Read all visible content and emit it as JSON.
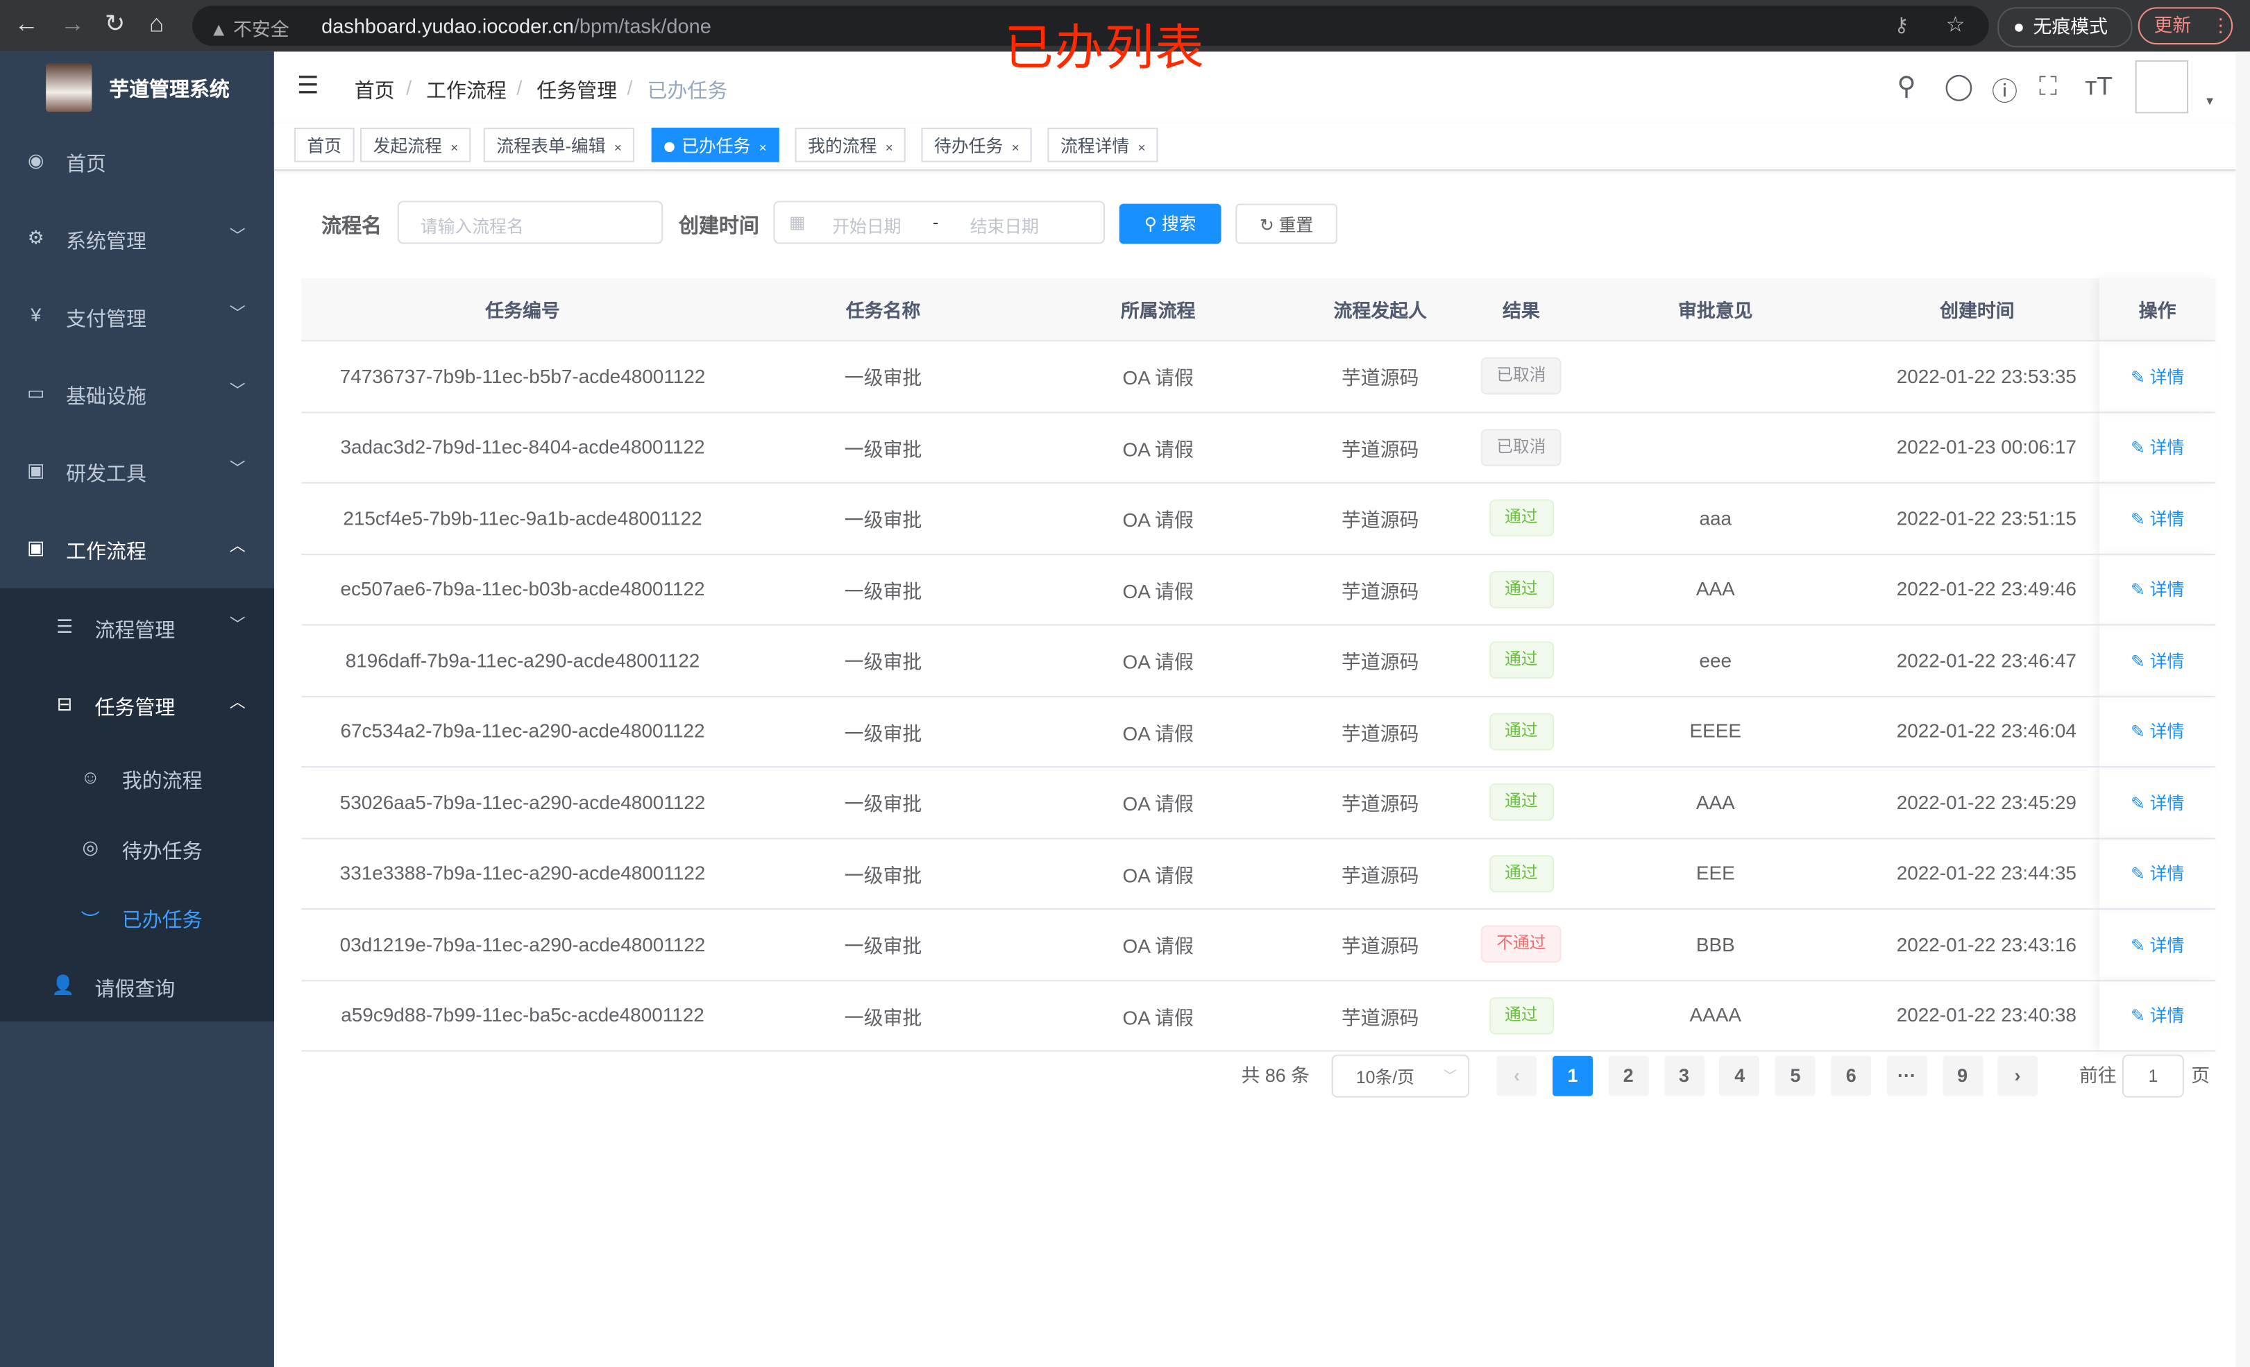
{
  "browser": {
    "security": "不安全",
    "url_host": "dashboard.yudao.iocoder.cn",
    "url_path": "/bpm/task/done",
    "incognito": "无痕模式",
    "update": "更新"
  },
  "overlay_title": "已办列表",
  "sidebar": {
    "title": "芋道管理系统",
    "items": [
      {
        "label": "首页",
        "icon": "dashboard-icon"
      },
      {
        "label": "系统管理",
        "icon": "gear-icon"
      },
      {
        "label": "支付管理",
        "icon": "yen-icon"
      },
      {
        "label": "基础设施",
        "icon": "monitor-icon"
      },
      {
        "label": "研发工具",
        "icon": "toolbox-icon"
      },
      {
        "label": "工作流程",
        "icon": "toolbox-icon"
      }
    ],
    "sub": [
      {
        "label": "流程管理"
      },
      {
        "label": "任务管理"
      },
      {
        "label": "我的流程"
      },
      {
        "label": "待办任务"
      },
      {
        "label": "已办任务"
      },
      {
        "label": "请假查询"
      }
    ],
    "active_color": "#409eff"
  },
  "breadcrumb": [
    "首页",
    "工作流程",
    "任务管理",
    "已办任务"
  ],
  "tags": [
    {
      "label": "首页"
    },
    {
      "label": "发起流程"
    },
    {
      "label": "流程表单-编辑"
    },
    {
      "label": "已办任务",
      "active": true
    },
    {
      "label": "我的流程"
    },
    {
      "label": "待办任务"
    },
    {
      "label": "流程详情"
    }
  ],
  "filter": {
    "name_label": "流程名",
    "name_placeholder": "请输入流程名",
    "time_label": "创建时间",
    "start_placeholder": "开始日期",
    "sep": "-",
    "end_placeholder": "结束日期",
    "search": "搜索",
    "reset": "重置"
  },
  "table": {
    "headers": [
      "任务编号",
      "任务名称",
      "所属流程",
      "流程发起人",
      "结果",
      "审批意见",
      "创建时间",
      "操作"
    ],
    "action": "详情",
    "rows": [
      [
        "74736737-7b9b-11ec-b5b7-acde48001122",
        "一级审批",
        "OA 请假",
        "芋道源码",
        "已取消",
        "",
        "2022-01-22 23:53:35"
      ],
      [
        "3adac3d2-7b9d-11ec-8404-acde48001122",
        "一级审批",
        "OA 请假",
        "芋道源码",
        "已取消",
        "",
        "2022-01-23 00:06:17"
      ],
      [
        "215cf4e5-7b9b-11ec-9a1b-acde48001122",
        "一级审批",
        "OA 请假",
        "芋道源码",
        "通过",
        "aaa",
        "2022-01-22 23:51:15"
      ],
      [
        "ec507ae6-7b9a-11ec-b03b-acde48001122",
        "一级审批",
        "OA 请假",
        "芋道源码",
        "通过",
        "AAA",
        "2022-01-22 23:49:46"
      ],
      [
        "8196daff-7b9a-11ec-a290-acde48001122",
        "一级审批",
        "OA 请假",
        "芋道源码",
        "通过",
        "eee",
        "2022-01-22 23:46:47"
      ],
      [
        "67c534a2-7b9a-11ec-a290-acde48001122",
        "一级审批",
        "OA 请假",
        "芋道源码",
        "通过",
        "EEEE",
        "2022-01-22 23:46:04"
      ],
      [
        "53026aa5-7b9a-11ec-a290-acde48001122",
        "一级审批",
        "OA 请假",
        "芋道源码",
        "通过",
        "AAA",
        "2022-01-22 23:45:29"
      ],
      [
        "331e3388-7b9a-11ec-a290-acde48001122",
        "一级审批",
        "OA 请假",
        "芋道源码",
        "通过",
        "EEE",
        "2022-01-22 23:44:35"
      ],
      [
        "03d1219e-7b9a-11ec-a290-acde48001122",
        "一级审批",
        "OA 请假",
        "芋道源码",
        "不通过",
        "BBB",
        "2022-01-22 23:43:16"
      ],
      [
        "a59c9d88-7b99-11ec-ba5c-acde48001122",
        "一级审批",
        "OA 请假",
        "芋道源码",
        "通过",
        "AAAA",
        "2022-01-22 23:40:38"
      ]
    ]
  },
  "pagination": {
    "total": "共 86 条",
    "page_size": "10条/页",
    "pages": [
      "1",
      "2",
      "3",
      "4",
      "5",
      "6",
      "···",
      "9"
    ],
    "current": "1",
    "goto_label": "前往",
    "goto_value": "1",
    "page_suffix": "页"
  }
}
